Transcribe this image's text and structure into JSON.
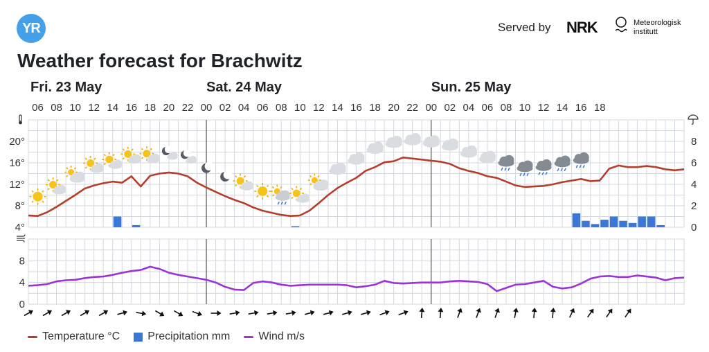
{
  "header": {
    "logo_text": "YR",
    "served_by": "Served by",
    "nrk_text": "NRK",
    "met_line1": "Meteorologisk",
    "met_line2": "institutt"
  },
  "title": "Weather forecast for Brachwitz",
  "colors": {
    "temperature": "#b53d2c",
    "precipitation": "#3b78d6",
    "wind": "#9b34d4",
    "grid": "#d3d8df",
    "day_divider": "#555555",
    "logo": "#46a0e8"
  },
  "legend": {
    "temperature": "Temperature °C",
    "precipitation": "Precipitation mm",
    "wind": "Wind m/s"
  },
  "chart_data": [
    {
      "type": "line",
      "name": "temperature-precipitation",
      "days": [
        {
          "label": "Fri. 23 May",
          "start_hour_index": 0
        },
        {
          "label": "Sat. 24 May",
          "start_hour_index": 19
        },
        {
          "label": "Sun. 25 May",
          "start_hour_index": 43
        }
      ],
      "x_start": "Fri. 23 May 05:00",
      "x_step_hours": 1,
      "hour_ticks": [
        "06",
        "08",
        "10",
        "12",
        "14",
        "16",
        "18",
        "20",
        "22",
        "00",
        "02",
        "04",
        "06",
        "08",
        "10",
        "12",
        "14",
        "16",
        "18",
        "20",
        "22",
        "00",
        "02",
        "04",
        "06",
        "08",
        "10",
        "12",
        "14",
        "16",
        "18"
      ],
      "temperature_axis": {
        "unit_icon": "thermometer-icon",
        "ylim": [
          4,
          24
        ],
        "ticks": [
          "4°",
          "8°",
          "12°",
          "16°",
          "20°"
        ]
      },
      "precipitation_axis": {
        "unit_icon": "umbrella-icon",
        "ylim": [
          0,
          10
        ],
        "ticks": [
          "0",
          "2",
          "4",
          "6",
          "8"
        ]
      },
      "temperature": [
        6.2,
        6.1,
        6.8,
        7.8,
        8.9,
        10.0,
        11.2,
        11.8,
        12.2,
        12.5,
        12.3,
        13.5,
        11.6,
        13.6,
        14.0,
        14.2,
        14.0,
        13.5,
        12.3,
        11.4,
        10.6,
        9.8,
        9.1,
        8.5,
        7.7,
        7.1,
        6.7,
        6.3,
        6.1,
        6.2,
        7.1,
        8.5,
        10.0,
        11.3,
        12.3,
        13.2,
        14.5,
        15.2,
        16.1,
        16.3,
        17.0,
        16.8,
        16.6,
        16.4,
        16.2,
        15.8,
        15.0,
        14.5,
        14.1,
        13.5,
        13.2,
        12.5,
        11.8,
        11.5,
        11.6,
        11.7,
        12.0,
        12.4,
        12.7,
        13.0,
        12.6,
        12.7,
        14.9,
        15.5,
        15.2,
        15.2,
        15.4,
        15.2,
        14.8,
        14.6,
        14.8
      ],
      "precipitation": [
        {
          "x": 9,
          "value": 1.0
        },
        {
          "x": 11,
          "value": 0.2
        },
        {
          "x": 28,
          "value": 0.1
        },
        {
          "x": 58,
          "value": 1.3
        },
        {
          "x": 59,
          "value": 0.6
        },
        {
          "x": 60,
          "value": 0.3
        },
        {
          "x": 61,
          "value": 0.7
        },
        {
          "x": 62,
          "value": 1.0
        },
        {
          "x": 63,
          "value": 0.6
        },
        {
          "x": 64,
          "value": 0.4
        },
        {
          "x": 65,
          "value": 1.0
        },
        {
          "x": 66,
          "value": 1.0
        },
        {
          "x": 67,
          "value": 0.2
        }
      ],
      "weather_symbols": [
        {
          "x": 1,
          "icon": "sun-icon"
        },
        {
          "x": 3,
          "icon": "sun-cloud-icon"
        },
        {
          "x": 5,
          "icon": "partly-cloudy-icon"
        },
        {
          "x": 7,
          "icon": "sun-cloud-icon"
        },
        {
          "x": 9,
          "icon": "sun-cloud-icon"
        },
        {
          "x": 11,
          "icon": "sun-cloud-icon"
        },
        {
          "x": 13,
          "icon": "sun-cloud-icon"
        },
        {
          "x": 15,
          "icon": "moon-cloud-icon"
        },
        {
          "x": 17,
          "icon": "moon-cloud-icon"
        },
        {
          "x": 19,
          "icon": "moon-icon"
        },
        {
          "x": 21,
          "icon": "moon-icon"
        },
        {
          "x": 23,
          "icon": "sun-cloud-icon"
        },
        {
          "x": 25,
          "icon": "sun-icon"
        },
        {
          "x": 27,
          "icon": "sun-cloud-rain-icon"
        },
        {
          "x": 29,
          "icon": "sun-cloud-icon"
        },
        {
          "x": 31,
          "icon": "partly-cloudy-icon"
        },
        {
          "x": 33,
          "icon": "cloud-icon"
        },
        {
          "x": 35,
          "icon": "cloud-icon"
        },
        {
          "x": 37,
          "icon": "cloud-icon"
        },
        {
          "x": 39,
          "icon": "cloud-icon"
        },
        {
          "x": 41,
          "icon": "cloud-icon"
        },
        {
          "x": 43,
          "icon": "cloud-icon"
        },
        {
          "x": 45,
          "icon": "cloud-icon"
        },
        {
          "x": 47,
          "icon": "cloud-icon"
        },
        {
          "x": 49,
          "icon": "cloud-icon"
        },
        {
          "x": 51,
          "icon": "rain-cloud-icon"
        },
        {
          "x": 53,
          "icon": "rain-cloud-icon"
        },
        {
          "x": 55,
          "icon": "rain-cloud-icon"
        },
        {
          "x": 57,
          "icon": "rain-cloud-icon"
        },
        {
          "x": 59,
          "icon": "rain-cloud-icon"
        }
      ],
      "grid": true
    },
    {
      "type": "line",
      "name": "wind",
      "wind_axis": {
        "unit_icon": "wind-icon",
        "ylim": [
          0,
          12
        ],
        "ticks": [
          "0",
          "4",
          "8"
        ]
      },
      "wind": [
        3.4,
        3.5,
        3.7,
        4.2,
        4.4,
        4.5,
        4.8,
        5.0,
        5.1,
        5.4,
        5.8,
        6.1,
        6.3,
        6.9,
        6.5,
        5.8,
        5.4,
        5.1,
        4.8,
        4.5,
        4.0,
        3.2,
        2.7,
        2.6,
        3.9,
        4.2,
        4.0,
        3.6,
        3.4,
        3.5,
        3.6,
        3.6,
        3.6,
        3.6,
        3.5,
        3.1,
        3.3,
        3.6,
        4.3,
        3.9,
        3.8,
        3.9,
        4.0,
        4.0,
        4.0,
        4.2,
        4.3,
        4.2,
        4.1,
        3.7,
        2.4,
        3.0,
        3.6,
        3.7,
        4.0,
        4.3,
        3.2,
        2.9,
        3.1,
        3.8,
        4.7,
        5.1,
        5.2,
        5.0,
        5.0,
        5.3,
        5.1,
        4.9,
        4.4,
        4.8,
        4.9
      ],
      "wind_arrows": [
        {
          "x": 0,
          "direction_deg": 60
        },
        {
          "x": 2,
          "direction_deg": 60
        },
        {
          "x": 4,
          "direction_deg": 60
        },
        {
          "x": 6,
          "direction_deg": 60
        },
        {
          "x": 8,
          "direction_deg": 60
        },
        {
          "x": 10,
          "direction_deg": 75
        },
        {
          "x": 12,
          "direction_deg": 100
        },
        {
          "x": 14,
          "direction_deg": 120
        },
        {
          "x": 16,
          "direction_deg": 120
        },
        {
          "x": 18,
          "direction_deg": 110
        },
        {
          "x": 20,
          "direction_deg": 90
        },
        {
          "x": 22,
          "direction_deg": 80
        },
        {
          "x": 24,
          "direction_deg": 80
        },
        {
          "x": 26,
          "direction_deg": 80
        },
        {
          "x": 28,
          "direction_deg": 80
        },
        {
          "x": 30,
          "direction_deg": 75
        },
        {
          "x": 32,
          "direction_deg": 75
        },
        {
          "x": 34,
          "direction_deg": 75
        },
        {
          "x": 36,
          "direction_deg": 75
        },
        {
          "x": 38,
          "direction_deg": 70
        },
        {
          "x": 40,
          "direction_deg": 70
        },
        {
          "x": 42,
          "direction_deg": 5
        },
        {
          "x": 44,
          "direction_deg": 5
        },
        {
          "x": 46,
          "direction_deg": 20
        },
        {
          "x": 48,
          "direction_deg": 20
        },
        {
          "x": 50,
          "direction_deg": 20
        },
        {
          "x": 52,
          "direction_deg": 10
        },
        {
          "x": 54,
          "direction_deg": 5
        },
        {
          "x": 56,
          "direction_deg": 5
        },
        {
          "x": 58,
          "direction_deg": 25
        },
        {
          "x": 60,
          "direction_deg": 35
        },
        {
          "x": 62,
          "direction_deg": 35
        },
        {
          "x": 64,
          "direction_deg": 35
        }
      ],
      "grid": true
    }
  ]
}
